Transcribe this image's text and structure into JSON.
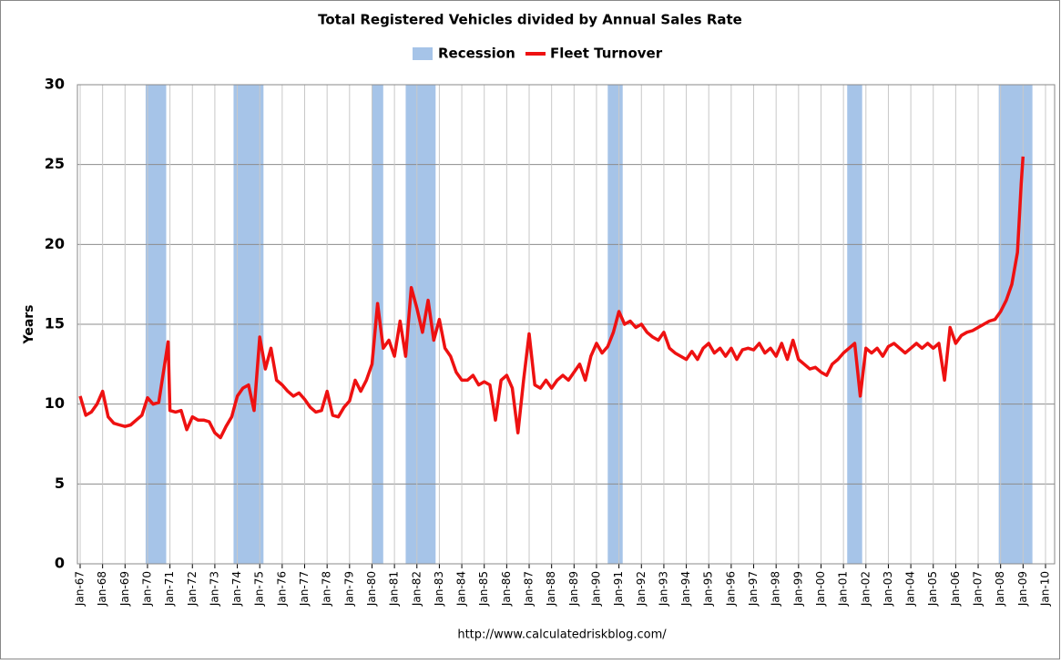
{
  "chart_data": {
    "type": "line",
    "title": "Total Registered Vehicles divided by Annual Sales Rate",
    "y_label": "Years",
    "source": "http://www.calculatedriskblog.com/",
    "ylim": [
      0,
      30
    ],
    "yticks": [
      0,
      5,
      10,
      15,
      20,
      25,
      30
    ],
    "grid": true,
    "xlim": [
      "Jan-67",
      "Jan-10"
    ],
    "xticks": [
      "Jan-67",
      "Jan-68",
      "Jan-69",
      "Jan-70",
      "Jan-71",
      "Jan-72",
      "Jan-73",
      "Jan-74",
      "Jan-75",
      "Jan-76",
      "Jan-77",
      "Jan-78",
      "Jan-79",
      "Jan-80",
      "Jan-81",
      "Jan-82",
      "Jan-83",
      "Jan-84",
      "Jan-85",
      "Jan-86",
      "Jan-87",
      "Jan-88",
      "Jan-89",
      "Jan-90",
      "Jan-91",
      "Jan-92",
      "Jan-93",
      "Jan-94",
      "Jan-95",
      "Jan-96",
      "Jan-97",
      "Jan-98",
      "Jan-99",
      "Jan-00",
      "Jan-01",
      "Jan-02",
      "Jan-03",
      "Jan-04",
      "Jan-05",
      "Jan-06",
      "Jan-07",
      "Jan-08",
      "Jan-09",
      "Jan-10"
    ],
    "x": [
      "Jan-67",
      "Apr-67",
      "Jul-67",
      "Oct-67",
      "Jan-68",
      "Apr-68",
      "Jul-68",
      "Oct-68",
      "Jan-69",
      "Apr-69",
      "Jul-69",
      "Oct-69",
      "Jan-70",
      "Apr-70",
      "Jul-70",
      "Dec-70",
      "Jan-71",
      "Apr-71",
      "Jul-71",
      "Oct-71",
      "Jan-72",
      "Apr-72",
      "Jul-72",
      "Oct-72",
      "Jan-73",
      "Apr-73",
      "Jul-73",
      "Oct-73",
      "Jan-74",
      "Apr-74",
      "Jul-74",
      "Oct-74",
      "Jan-75",
      "Apr-75",
      "Jul-75",
      "Oct-75",
      "Jan-76",
      "Apr-76",
      "Jul-76",
      "Oct-76",
      "Jan-77",
      "Apr-77",
      "Jul-77",
      "Oct-77",
      "Jan-78",
      "Apr-78",
      "Jul-78",
      "Oct-78",
      "Jan-79",
      "Apr-79",
      "Jul-79",
      "Oct-79",
      "Jan-80",
      "Apr-80",
      "Jul-80",
      "Oct-80",
      "Jan-81",
      "Apr-81",
      "Jul-81",
      "Oct-81",
      "Jan-82",
      "Apr-82",
      "Jul-82",
      "Oct-82",
      "Jan-83",
      "Apr-83",
      "Jul-83",
      "Oct-83",
      "Jan-84",
      "Apr-84",
      "Jul-84",
      "Oct-84",
      "Jan-85",
      "Apr-85",
      "Jul-85",
      "Oct-85",
      "Jan-86",
      "Apr-86",
      "Jul-86",
      "Oct-86",
      "Jan-87",
      "Apr-87",
      "Jul-87",
      "Oct-87",
      "Jan-88",
      "Apr-88",
      "Jul-88",
      "Oct-88",
      "Jan-89",
      "Apr-89",
      "Jul-89",
      "Oct-89",
      "Jan-90",
      "Apr-90",
      "Jul-90",
      "Oct-90",
      "Jan-91",
      "Apr-91",
      "Jul-91",
      "Oct-91",
      "Jan-92",
      "Apr-92",
      "Jul-92",
      "Oct-92",
      "Jan-93",
      "Apr-93",
      "Jul-93",
      "Oct-93",
      "Jan-94",
      "Apr-94",
      "Jul-94",
      "Oct-94",
      "Jan-95",
      "Apr-95",
      "Jul-95",
      "Oct-95",
      "Jan-96",
      "Apr-96",
      "Jul-96",
      "Oct-96",
      "Jan-97",
      "Apr-97",
      "Jul-97",
      "Oct-97",
      "Jan-98",
      "Apr-98",
      "Jul-98",
      "Oct-98",
      "Jan-99",
      "Apr-99",
      "Jul-99",
      "Oct-99",
      "Jan-00",
      "Apr-00",
      "Jul-00",
      "Oct-00",
      "Jan-01",
      "Apr-01",
      "Jul-01",
      "Oct-01",
      "Jan-02",
      "Apr-02",
      "Jul-02",
      "Oct-02",
      "Jan-03",
      "Apr-03",
      "Jul-03",
      "Oct-03",
      "Jan-04",
      "Apr-04",
      "Jul-04",
      "Oct-04",
      "Jan-05",
      "Apr-05",
      "Jul-05",
      "Oct-05",
      "Jan-06",
      "Apr-06",
      "Jul-06",
      "Oct-06",
      "Jan-07",
      "Apr-07",
      "Jul-07",
      "Oct-07",
      "Jan-08",
      "Apr-08",
      "Jul-08",
      "Oct-08",
      "Dec-08",
      "Jan-09"
    ],
    "series": [
      {
        "name": "Recession",
        "color": "#a6c4e8",
        "ranges": [
          [
            "Dec-69",
            "Nov-70"
          ],
          [
            "Nov-73",
            "Mar-75"
          ],
          [
            "Jan-80",
            "Jul-80"
          ],
          [
            "Jul-81",
            "Nov-82"
          ],
          [
            "Jul-90",
            "Mar-91"
          ],
          [
            "Mar-01",
            "Nov-01"
          ],
          [
            "Dec-07",
            "Jun-09"
          ]
        ]
      },
      {
        "name": "Fleet Turnover",
        "color": "#ee1111",
        "values": [
          10.5,
          9.3,
          9.5,
          10.0,
          10.8,
          9.2,
          8.8,
          8.7,
          8.6,
          8.7,
          9.0,
          9.3,
          10.4,
          10.0,
          10.1,
          13.9,
          9.6,
          9.5,
          9.6,
          8.4,
          9.2,
          9.0,
          9.0,
          8.9,
          8.2,
          7.9,
          8.6,
          9.2,
          10.5,
          11.0,
          11.2,
          9.6,
          14.2,
          12.2,
          13.5,
          11.5,
          11.2,
          10.8,
          10.5,
          10.7,
          10.3,
          9.8,
          9.5,
          9.6,
          10.8,
          9.3,
          9.2,
          9.8,
          10.2,
          11.5,
          10.8,
          11.5,
          12.5,
          16.3,
          13.5,
          14.0,
          13.0,
          15.2,
          13.0,
          17.3,
          16.0,
          14.5,
          16.5,
          14.0,
          15.3,
          13.5,
          13.0,
          12.0,
          11.5,
          11.5,
          11.8,
          11.2,
          11.4,
          11.2,
          9.0,
          11.5,
          11.8,
          11.0,
          8.2,
          11.5,
          14.4,
          11.2,
          11.0,
          11.5,
          11.0,
          11.5,
          11.8,
          11.5,
          12.0,
          12.5,
          11.5,
          13.0,
          13.8,
          13.2,
          13.6,
          14.5,
          15.8,
          15.0,
          15.2,
          14.8,
          15.0,
          14.5,
          14.2,
          14.0,
          14.5,
          13.5,
          13.2,
          13.0,
          12.8,
          13.3,
          12.8,
          13.5,
          13.8,
          13.2,
          13.5,
          13.0,
          13.5,
          12.8,
          13.4,
          13.5,
          13.4,
          13.8,
          13.2,
          13.5,
          13.0,
          13.8,
          12.8,
          14.0,
          12.8,
          12.5,
          12.2,
          12.3,
          12.0,
          11.8,
          12.5,
          12.8,
          13.2,
          13.5,
          13.8,
          10.5,
          13.5,
          13.2,
          13.5,
          13.0,
          13.6,
          13.8,
          13.5,
          13.2,
          13.5,
          13.8,
          13.5,
          13.8,
          13.5,
          13.8,
          11.5,
          14.8,
          13.8,
          14.3,
          14.5,
          14.6,
          14.8,
          15.0,
          15.2,
          15.3,
          15.8,
          16.5,
          17.5,
          19.5,
          23.8,
          25.5
        ]
      }
    ]
  }
}
